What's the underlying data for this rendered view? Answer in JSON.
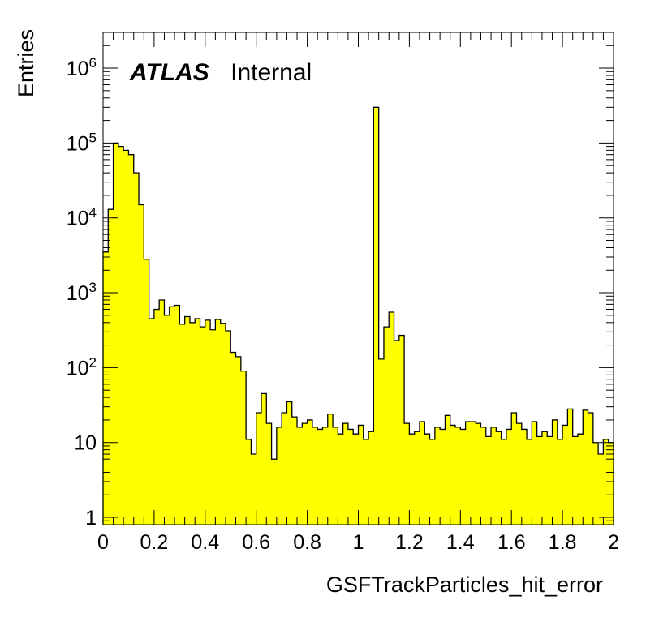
{
  "chart_data": {
    "type": "histogram",
    "title": "",
    "xlabel": "GSFTrackParticles_hit_error",
    "ylabel": "Entries",
    "xlim": [
      0,
      2
    ],
    "ylim": [
      0.8,
      3000000
    ],
    "yscale": "log",
    "grid": false,
    "fill_color": "#ffff00",
    "line_color": "#000000",
    "label": {
      "bold": "ATLAS",
      "text": "Internal"
    },
    "x_ticks": [
      "0",
      "0.2",
      "0.4",
      "0.6",
      "0.8",
      "1",
      "1.2",
      "1.4",
      "1.6",
      "1.8",
      "2"
    ],
    "y_ticks": [
      {
        "value": 1,
        "base": "1",
        "exp": ""
      },
      {
        "value": 10,
        "base": "10",
        "exp": ""
      },
      {
        "value": 100,
        "base": "10",
        "exp": "2"
      },
      {
        "value": 1000,
        "base": "10",
        "exp": "3"
      },
      {
        "value": 10000,
        "base": "10",
        "exp": "4"
      },
      {
        "value": 100000,
        "base": "10",
        "exp": "5"
      },
      {
        "value": 1000000,
        "base": "10",
        "exp": "6"
      }
    ],
    "bin_width": 0.02,
    "values": [
      3500,
      13000,
      100000,
      90000,
      80000,
      70000,
      40000,
      15000,
      2800,
      450,
      600,
      800,
      500,
      650,
      680,
      380,
      480,
      400,
      450,
      350,
      430,
      320,
      440,
      390,
      310,
      160,
      140,
      90,
      11,
      7,
      25,
      45,
      18,
      6,
      16,
      25,
      35,
      22,
      16,
      18,
      20,
      16,
      15,
      16,
      24,
      16,
      13,
      18,
      15,
      13,
      17,
      11,
      14,
      300000,
      130,
      350,
      550,
      230,
      270,
      18,
      13,
      14,
      19,
      13,
      11,
      16,
      15,
      23,
      17,
      16,
      15,
      19,
      19,
      18,
      16,
      12,
      16,
      14,
      11,
      15,
      25,
      18,
      15,
      11,
      19,
      12,
      14,
      12,
      20,
      11,
      17,
      28,
      12,
      13,
      27,
      25,
      10,
      7,
      11,
      10
    ]
  }
}
